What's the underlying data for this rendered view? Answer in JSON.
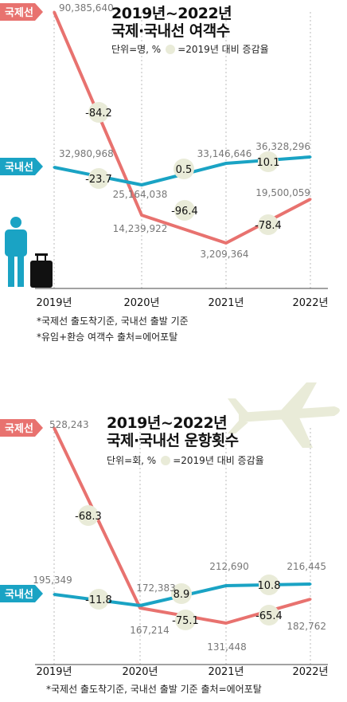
{
  "colors": {
    "intl": "#e8726f",
    "dom": "#1aa3c4",
    "circle": "#e9ebd8",
    "value_text": "#777777"
  },
  "chart_data": [
    {
      "type": "line",
      "title_line1": "2019년~2022년",
      "title_line2": "국제·국내선 여객수",
      "unit": "단위=명, %",
      "circle_legend": "=2019년 대비 증감율",
      "categories": [
        "2019년",
        "2020년",
        "2021년",
        "2022년"
      ],
      "series": [
        {
          "name": "국제선",
          "values": [
            90385640,
            14239922,
            3209364,
            19500059
          ],
          "value_labels": [
            "90,385,640",
            "14,239,922",
            "3,209,364",
            "19,500,059"
          ],
          "change_labels": [
            "-84.2",
            "-96.4",
            "-78.4"
          ]
        },
        {
          "name": "국내선",
          "values": [
            32980968,
            25164038,
            33146646,
            36328296
          ],
          "value_labels": [
            "32,980,968",
            "25,164,038",
            "33,146,646",
            "36,328,296"
          ],
          "change_labels": [
            "-23.7",
            "0.5",
            "10.1"
          ]
        }
      ],
      "footnotes": [
        "*국제선 출도착기준, 국내선 출발 기준",
        "*유임+환승 여객수  출처=에어포탈"
      ]
    },
    {
      "type": "line",
      "title_line1": "2019년~2022년",
      "title_line2": "국제·국내선 운항횟수",
      "unit": "단위=회, %",
      "circle_legend": "=2019년 대비 증감율",
      "categories": [
        "2019년",
        "2020년",
        "2021년",
        "2022년"
      ],
      "series": [
        {
          "name": "국제선",
          "values": [
            528243,
            167214,
            131448,
            182762
          ],
          "value_labels": [
            "528,243",
            "167,214",
            "131,448",
            "182,762"
          ],
          "change_labels": [
            "-68.3",
            "-75.1",
            "-65.4"
          ]
        },
        {
          "name": "국내선",
          "values": [
            195349,
            172383,
            212690,
            216445
          ],
          "value_labels": [
            "195,349",
            "172,383",
            "212,690",
            "216,445"
          ],
          "change_labels": [
            "-11.8",
            "8.9",
            "10.8"
          ]
        }
      ],
      "footnotes": [
        "*국제선 출도착기준, 국내선 출발 기준  출처=에어포탈"
      ]
    }
  ]
}
